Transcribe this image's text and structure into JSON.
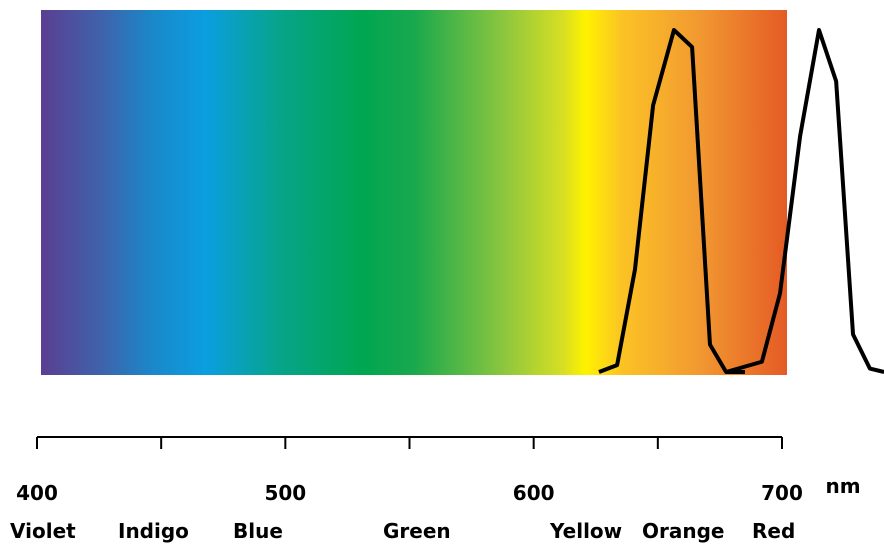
{
  "chart_data": {
    "type": "line",
    "series": [
      {
        "color": "#000000",
        "x": [
          626.3,
          633.6,
          640.8,
          648.1,
          656.5,
          663.8,
          671.0,
          677.5,
          685.1
        ],
        "values": [
          0,
          2,
          30,
          78,
          100,
          95,
          8,
          0,
          0
        ]
      },
      {
        "color": "#000000",
        "x": [
          677.5,
          691.9,
          699.2,
          707.3,
          714.9,
          721.8,
          728.6,
          735.4,
          741.1
        ],
        "values": [
          0,
          3,
          23,
          69,
          100,
          85,
          11,
          1,
          0
        ]
      }
    ],
    "xlim": [
      400,
      700
    ],
    "xticks": [
      400,
      500,
      600,
      700
    ],
    "minor_xticks": [
      450,
      550,
      650
    ],
    "ylim": [
      0,
      100
    ],
    "xlabel": "nm",
    "bands": [
      "Violet",
      "Indigo",
      "Blue",
      "Green",
      "Yellow",
      "Orange",
      "Red"
    ]
  }
}
